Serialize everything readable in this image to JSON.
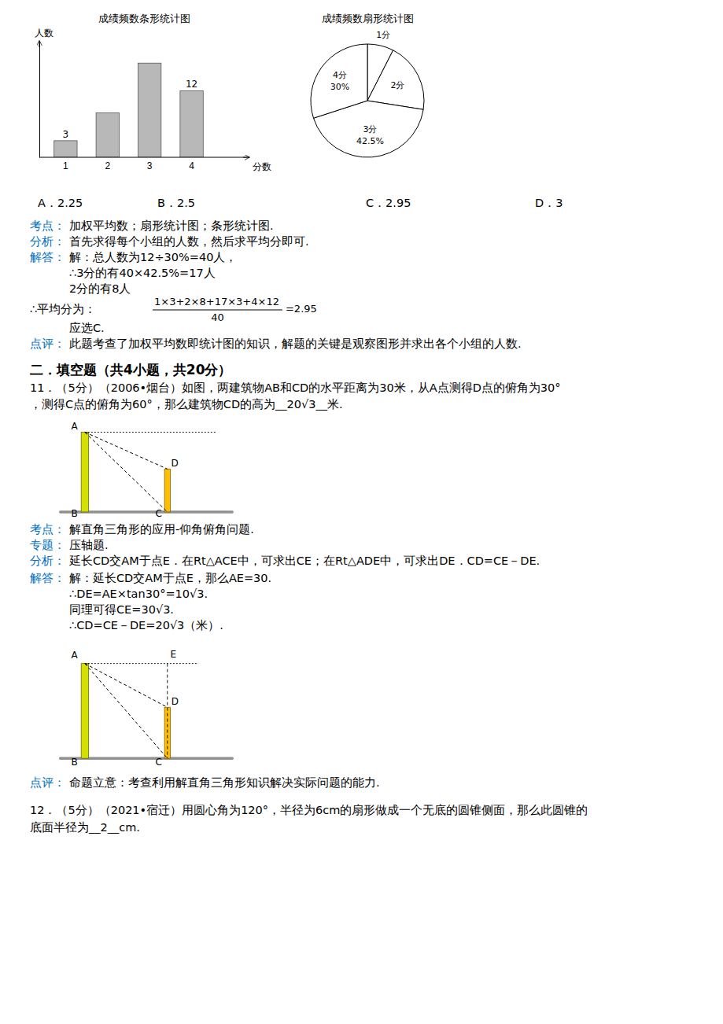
{
  "chart_data": [
    {
      "type": "bar",
      "title": "成绩频数条形统计图",
      "categories": [
        "1",
        "2",
        "3",
        "4"
      ],
      "values": [
        3,
        8,
        17,
        12
      ],
      "color": "#b8b8b8",
      "ylim": [
        0,
        21
      ],
      "tick_labels": "x",
      "xlabel": "分数",
      "ylabel": "人数",
      "data_labels": true,
      "value_labels": [
        "3",
        null,
        null,
        "12"
      ]
    },
    {
      "type": "pie",
      "title": "成绩频数扇形统计图",
      "categories": [
        "1分",
        "2分",
        "3分",
        "4分"
      ],
      "values": [
        7.5,
        20,
        42.5,
        30
      ],
      "colors": [
        "#ffffff",
        "#ffffff",
        "#ffffff",
        "#ffffff"
      ],
      "data_labels": true,
      "value_labels": [
        null,
        null,
        "42.5%",
        "30%"
      ]
    }
  ],
  "page_text": {
    "label_color": "#0070c0",
    "options": [
      "A．2.25",
      "B．2.5",
      "C．2.95",
      "D．3"
    ],
    "lines": [
      {
        "label": "考点：",
        "text": "加权平均数；扇形统计图；条形统计图."
      },
      {
        "label": "分析：",
        "text": "首先求得每个小组的人数，然后求平均分即可."
      },
      {
        "label": "解答：",
        "text": "解：总人数为12÷30%=40人，"
      },
      {
        "text": "∴3分的有40×42.5%=17人"
      },
      {
        "text": "2分的有8人"
      },
      {
        "text": "∴平均分为：",
        "numerator": "1×3+2×8+17×3+4×12",
        "denominator": "40",
        "after": "=2.95"
      },
      {
        "text": "应选C."
      },
      {
        "label": "点评：",
        "text": "此题考查了加权平均数即统计图的知识，解题的关键是观察图形并求出各个小组的人数."
      },
      {
        "text": "二．填空题（共4小题，共20分）"
      },
      {
        "text": "11．（5分）（2006•烟台）如图，两建筑物AB和CD的水平距离为30米，从A点测得D点的俯角为30°"
      },
      {
        "text": "，测得C点的俯角为60°，那么建筑物CD的高为__20√3__米."
      },
      {
        "label": "考点：",
        "text": "解直角三角形的应用-仰角俯角问题."
      },
      {
        "label": "专题：",
        "text": "压轴题."
      },
      {
        "label": "分析：",
        "text": "延长CD交AM于点E．在Rt△ACE中，可求出CE；在Rt△ADE中，可求出DE．CD=CE－DE."
      },
      {
        "label": "解答：",
        "text": "解：延长CD交AM于点E，那么AE=30."
      },
      {
        "text": "∴DE=AE×tan30°=10√3."
      },
      {
        "text": "同理可得CE=30√3."
      },
      {
        "text": "∴CD=CE－DE=20√3（米）."
      },
      {
        "label": "点评：",
        "text": "命题立意：考查利用解直角三角形知识解决实际问题的能力."
      },
      {
        "text": "12．（5分）（2021•宿迁）用圆心角为120°，半径为6cm的扇形做成一个无底的圆锥侧面，那么此圆锥的"
      },
      {
        "text": "底面半径为__2__cm."
      }
    ],
    "diagrams": [
      {
        "labels": [
          "A",
          "B",
          "D",
          "C"
        ]
      },
      {
        "labels": [
          "A",
          "B",
          "D",
          "C",
          "E"
        ]
      }
    ]
  }
}
